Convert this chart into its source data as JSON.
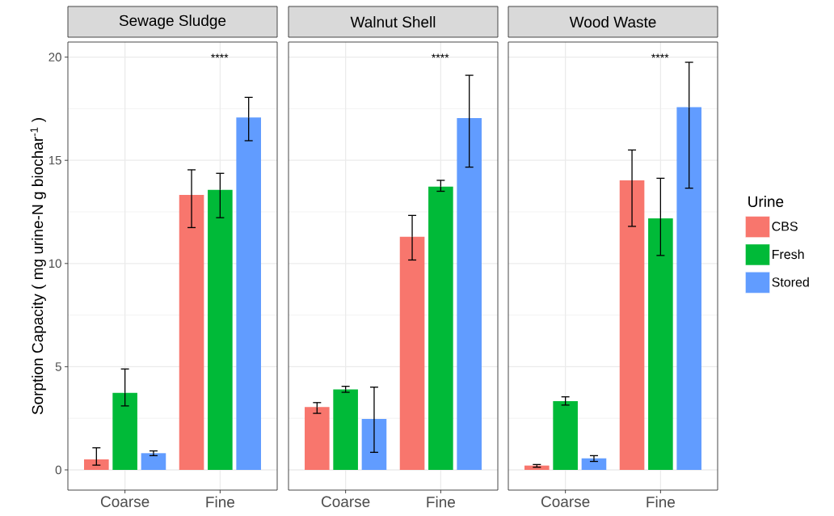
{
  "chart_data": [
    {
      "type": "bar",
      "title": "Sewage Sludge",
      "ylabel": "Sorption Capacity ( mg urine-N g biochar$^{-1}$ )",
      "categories": [
        "Coarse",
        "Fine"
      ],
      "ylim": [
        -0.98,
        20.73
      ],
      "yticks": [
        0,
        5,
        10,
        15,
        20
      ],
      "grid": true,
      "series": [
        {
          "color": "#f8766d",
          "values": [
            0.51,
            13.32
          ],
          "errors": [
            [
              0.23,
              1.07
            ],
            [
              11.74,
              14.54
            ]
          ]
        },
        {
          "color": "#00ba38",
          "values": [
            3.73,
            13.57
          ],
          "errors": [
            [
              3.1,
              4.89
            ],
            [
              12.22,
              14.37
            ]
          ]
        },
        {
          "color": "#619cff",
          "values": [
            0.81,
            17.08
          ],
          "errors": [
            [
              0.69,
              0.92
            ],
            [
              15.95,
              18.05
            ]
          ]
        }
      ],
      "annotations": [
        "****"
      ]
    },
    {
      "type": "bar",
      "title": "Walnut Shell",
      "categories": [
        "Coarse",
        "Fine"
      ],
      "ylim": [
        -0.98,
        20.73
      ],
      "yticks": [
        0,
        5,
        10,
        15,
        20
      ],
      "grid": true,
      "tick_labels": "x",
      "series": [
        {
          "color": "#f8766d",
          "values": [
            3.05,
            11.3
          ],
          "errors": [
            [
              2.74,
              3.26
            ],
            [
              10.17,
              12.33
            ]
          ]
        },
        {
          "color": "#00ba38",
          "values": [
            3.9,
            13.73
          ],
          "errors": [
            [
              3.76,
              4.05
            ],
            [
              13.5,
              14.03
            ]
          ]
        },
        {
          "color": "#619cff",
          "values": [
            2.47,
            17.05
          ],
          "errors": [
            [
              0.85,
              4.01
            ],
            [
              14.67,
              19.12
            ]
          ]
        }
      ],
      "annotations": [
        "****"
      ]
    },
    {
      "type": "bar",
      "title": "Wood Waste",
      "categories": [
        "Coarse",
        "Fine"
      ],
      "ylim": [
        -0.98,
        20.73
      ],
      "yticks": [
        0,
        5,
        10,
        15,
        20
      ],
      "grid": true,
      "tick_labels": "x",
      "legend": "right",
      "legend_title": "Urine",
      "series": [
        {
          "name": "CBS",
          "color": "#f8766d",
          "values": [
            0.21,
            14.03
          ],
          "errors": [
            [
              0.13,
              0.26
            ],
            [
              11.8,
              15.5
            ]
          ]
        },
        {
          "name": "Fresh",
          "color": "#00ba38",
          "values": [
            3.33,
            12.19
          ],
          "errors": [
            [
              3.14,
              3.54
            ],
            [
              10.39,
              14.13
            ]
          ]
        },
        {
          "name": "Stored",
          "color": "#619cff",
          "values": [
            0.56,
            17.58
          ],
          "errors": [
            [
              0.41,
              0.69
            ],
            [
              13.65,
              19.75
            ]
          ]
        }
      ],
      "annotations": [
        "****"
      ]
    }
  ]
}
